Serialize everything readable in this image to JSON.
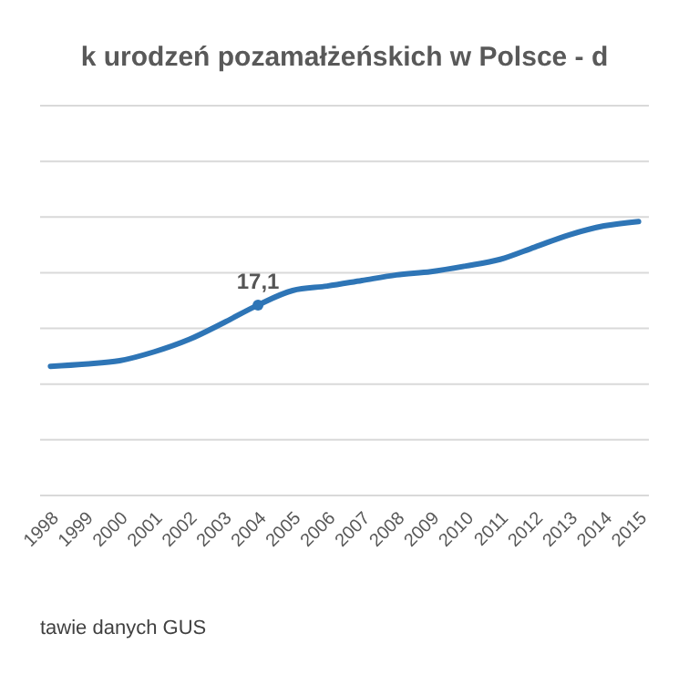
{
  "chart_data": {
    "type": "line",
    "title": "k urodzeń pozamałżeńskich w Polsce - d",
    "categories": [
      "1998",
      "1999",
      "2000",
      "2001",
      "2002",
      "2003",
      "2004",
      "2005",
      "2006",
      "2007",
      "2008",
      "2009",
      "2010",
      "2011",
      "2012",
      "2013",
      "2014",
      "2015"
    ],
    "series": [
      {
        "color": "#2e75b6",
        "values": [
          11.6,
          11.8,
          12.1,
          12.9,
          14.0,
          15.5,
          17.1,
          18.4,
          18.8,
          19.3,
          19.8,
          20.1,
          20.6,
          21.2,
          22.3,
          23.4,
          24.2,
          24.6
        ],
        "value_labels": [
          null,
          null,
          null,
          null,
          null,
          null,
          "17,1",
          null,
          null,
          null,
          null,
          null,
          null,
          null,
          null,
          null,
          null,
          null
        ]
      }
    ],
    "ylim": [
      0,
      35
    ],
    "yticks": [
      {
        "value": 0,
        "label": null
      },
      {
        "value": 5,
        "label": null
      },
      {
        "value": 10,
        "label": null
      },
      {
        "value": 15,
        "label": null
      },
      {
        "value": 20,
        "label": null
      },
      {
        "value": 25,
        "label": null
      },
      {
        "value": 30,
        "label": null
      },
      {
        "value": 35,
        "label": null
      }
    ],
    "grid": "y",
    "tick_labels": "x",
    "annotations": [
      "tawie danych GUS"
    ]
  }
}
